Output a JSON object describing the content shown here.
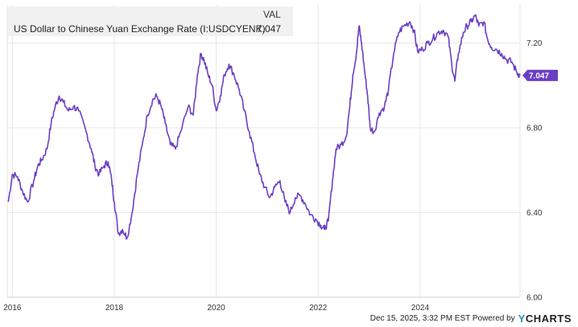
{
  "chart_data": {
    "type": "line",
    "title": "",
    "xlabel": "",
    "ylabel": "",
    "xlim": [
      2015.9,
      2025.96
    ],
    "ylim": [
      6.0,
      7.38
    ],
    "y_ticks": [
      "6.00",
      "6.40",
      "6.80",
      "7.20"
    ],
    "y_tick_values": [
      6.0,
      6.4,
      6.8,
      7.2
    ],
    "x_ticks": [
      "2016",
      "2018",
      "2020",
      "2022",
      "2024"
    ],
    "x_tick_values": [
      2016,
      2018,
      2020,
      2022,
      2024
    ],
    "grid": true,
    "series": [
      {
        "name": "US Dollar to Chinese Yuan Exchange Rate (I:USDCYENK)",
        "color": "#6a3fc4",
        "points": [
          [
            2015.92,
            6.45
          ],
          [
            2016.0,
            6.58
          ],
          [
            2016.1,
            6.57
          ],
          [
            2016.2,
            6.5
          ],
          [
            2016.3,
            6.45
          ],
          [
            2016.42,
            6.55
          ],
          [
            2016.5,
            6.62
          ],
          [
            2016.58,
            6.65
          ],
          [
            2016.68,
            6.7
          ],
          [
            2016.76,
            6.82
          ],
          [
            2016.84,
            6.9
          ],
          [
            2016.92,
            6.95
          ],
          [
            2017.0,
            6.92
          ],
          [
            2017.1,
            6.88
          ],
          [
            2017.2,
            6.9
          ],
          [
            2017.3,
            6.88
          ],
          [
            2017.45,
            6.78
          ],
          [
            2017.55,
            6.7
          ],
          [
            2017.62,
            6.62
          ],
          [
            2017.7,
            6.58
          ],
          [
            2017.8,
            6.62
          ],
          [
            2017.88,
            6.64
          ],
          [
            2017.95,
            6.55
          ],
          [
            2018.0,
            6.45
          ],
          [
            2018.08,
            6.3
          ],
          [
            2018.16,
            6.32
          ],
          [
            2018.25,
            6.28
          ],
          [
            2018.35,
            6.4
          ],
          [
            2018.45,
            6.58
          ],
          [
            2018.55,
            6.72
          ],
          [
            2018.65,
            6.86
          ],
          [
            2018.75,
            6.93
          ],
          [
            2018.83,
            6.95
          ],
          [
            2018.92,
            6.9
          ],
          [
            2019.0,
            6.82
          ],
          [
            2019.1,
            6.72
          ],
          [
            2019.2,
            6.7
          ],
          [
            2019.3,
            6.78
          ],
          [
            2019.45,
            6.9
          ],
          [
            2019.55,
            6.86
          ],
          [
            2019.63,
            7.05
          ],
          [
            2019.7,
            7.15
          ],
          [
            2019.76,
            7.12
          ],
          [
            2019.84,
            7.05
          ],
          [
            2019.92,
            7.0
          ],
          [
            2020.0,
            6.88
          ],
          [
            2020.08,
            6.95
          ],
          [
            2020.16,
            7.05
          ],
          [
            2020.25,
            7.1
          ],
          [
            2020.35,
            7.05
          ],
          [
            2020.45,
            6.98
          ],
          [
            2020.55,
            6.88
          ],
          [
            2020.65,
            6.78
          ],
          [
            2020.75,
            6.68
          ],
          [
            2020.85,
            6.58
          ],
          [
            2020.95,
            6.52
          ],
          [
            2021.05,
            6.47
          ],
          [
            2021.15,
            6.52
          ],
          [
            2021.25,
            6.55
          ],
          [
            2021.35,
            6.45
          ],
          [
            2021.45,
            6.4
          ],
          [
            2021.55,
            6.47
          ],
          [
            2021.65,
            6.48
          ],
          [
            2021.75,
            6.44
          ],
          [
            2021.85,
            6.39
          ],
          [
            2021.95,
            6.37
          ],
          [
            2022.05,
            6.34
          ],
          [
            2022.12,
            6.32
          ],
          [
            2022.2,
            6.36
          ],
          [
            2022.28,
            6.55
          ],
          [
            2022.35,
            6.7
          ],
          [
            2022.45,
            6.72
          ],
          [
            2022.55,
            6.76
          ],
          [
            2022.62,
            6.9
          ],
          [
            2022.68,
            7.05
          ],
          [
            2022.75,
            7.15
          ],
          [
            2022.8,
            7.28
          ],
          [
            2022.85,
            7.2
          ],
          [
            2022.92,
            7.05
          ],
          [
            2022.97,
            6.95
          ],
          [
            2023.02,
            6.8
          ],
          [
            2023.1,
            6.78
          ],
          [
            2023.2,
            6.87
          ],
          [
            2023.3,
            6.9
          ],
          [
            2023.38,
            6.98
          ],
          [
            2023.48,
            7.15
          ],
          [
            2023.58,
            7.25
          ],
          [
            2023.68,
            7.28
          ],
          [
            2023.8,
            7.3
          ],
          [
            2023.88,
            7.26
          ],
          [
            2023.95,
            7.16
          ],
          [
            2024.05,
            7.17
          ],
          [
            2024.15,
            7.2
          ],
          [
            2024.25,
            7.22
          ],
          [
            2024.35,
            7.25
          ],
          [
            2024.45,
            7.26
          ],
          [
            2024.55,
            7.23
          ],
          [
            2024.62,
            7.1
          ],
          [
            2024.68,
            7.02
          ],
          [
            2024.75,
            7.15
          ],
          [
            2024.85,
            7.25
          ],
          [
            2024.92,
            7.28
          ],
          [
            2025.0,
            7.3
          ],
          [
            2025.08,
            7.33
          ],
          [
            2025.15,
            7.28
          ],
          [
            2025.25,
            7.3
          ],
          [
            2025.32,
            7.22
          ],
          [
            2025.4,
            7.18
          ],
          [
            2025.5,
            7.17
          ],
          [
            2025.6,
            7.15
          ],
          [
            2025.7,
            7.12
          ],
          [
            2025.8,
            7.11
          ],
          [
            2025.9,
            7.06
          ],
          [
            2025.96,
            7.047
          ]
        ]
      }
    ]
  },
  "legend": {
    "header": "VAL",
    "series_name": "US Dollar to Chinese Yuan Exchange Rate (I:USDCYENK)",
    "value": "7.047"
  },
  "last_value_badge": "7.047",
  "footer": {
    "timestamp": "Dec 15, 2025, 3:32 PM EST Powered by",
    "brand_y": "Y",
    "brand_rest": "CHARTS"
  }
}
